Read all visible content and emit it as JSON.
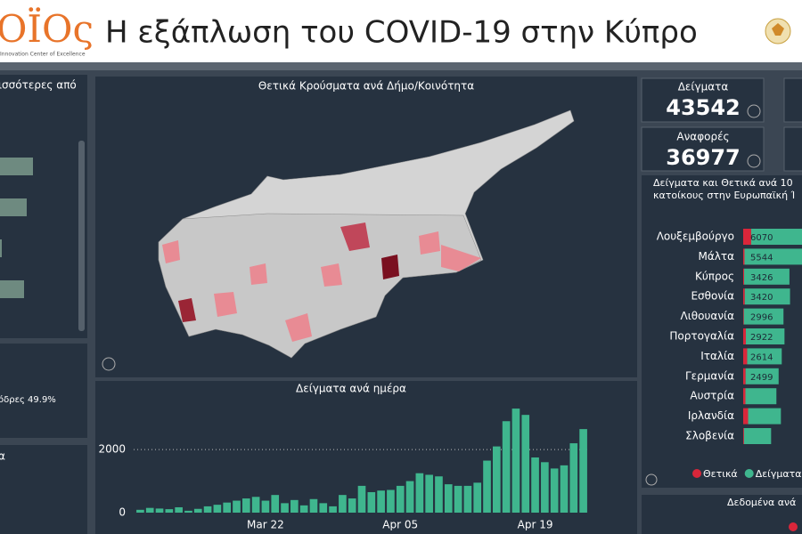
{
  "header": {
    "logo": "ΟΪΟς",
    "logo_subtitle": "Innovation Center of Excellence",
    "title": "Η εξάπλωση του COVID-19 στην Κύπρο"
  },
  "left_panel": {
    "title": "ισσότερες από",
    "bars": [
      37,
      30,
      2,
      27
    ],
    "xlim": [
      0,
      40
    ],
    "note": "όδρες 49.9%",
    "bottom_title": "α"
  },
  "map_panel": {
    "title": "Θετικά Κρούσματα ανά Δήμο/Κοινότητα"
  },
  "cards": [
    {
      "label": "Δείγματα",
      "value": "43542"
    },
    {
      "label": "Αναφορές",
      "value": "36977"
    }
  ],
  "chart_data": [
    {
      "type": "bar",
      "title": "Δείγματα ανά ημέρα",
      "color": "#3fb68e",
      "categories": [
        null,
        null,
        null,
        null,
        null,
        null,
        null,
        null,
        null,
        null,
        null,
        null,
        null,
        "Mar 22",
        null,
        null,
        null,
        null,
        null,
        null,
        null,
        null,
        null,
        null,
        null,
        null,
        null,
        "Apr 05",
        null,
        null,
        null,
        null,
        null,
        null,
        null,
        null,
        null,
        null,
        null,
        null,
        null,
        "Apr 19",
        null,
        null,
        null,
        null,
        null
      ],
      "values": [
        90,
        150,
        130,
        110,
        170,
        60,
        120,
        200,
        250,
        320,
        380,
        450,
        500,
        380,
        560,
        300,
        400,
        230,
        430,
        300,
        200,
        560,
        450,
        850,
        650,
        700,
        720,
        850,
        1000,
        1250,
        1200,
        1150,
        900,
        850,
        850,
        950,
        1650,
        2100,
        2900,
        3300,
        3100,
        1750,
        1600,
        1400,
        1500,
        2200,
        2650
      ],
      "ylim": [
        0,
        3500
      ],
      "yticks": [
        0,
        2000
      ],
      "grid": true
    },
    {
      "type": "hbar",
      "title": [
        "Δείγματα και Θετικά ανά 10",
        "κατοίκους στην Ευρωπαϊκή Ί"
      ],
      "categories": [
        "Λουξεμβούργο",
        "Μάλτα",
        "Κύπρος",
        "Εσθονία",
        "Λιθουανία",
        "Πορτογαλία",
        "Ιταλία",
        "Γερμανία",
        "Αυστρία",
        "Ιρλανδία",
        "Σλοβενία"
      ],
      "series": [
        {
          "name": "Θετικά",
          "color": "#d9263a",
          "values": [
            600,
            100,
            70,
            120,
            50,
            200,
            300,
            180,
            170,
            370,
            60
          ]
        },
        {
          "name": "Δείγματα",
          "color": "#3fb68e",
          "values": [
            6070,
            5544,
            3426,
            3420,
            2996,
            2922,
            2614,
            2499,
            2340,
            2480,
            2050
          ],
          "value_labels": [
            "6070",
            "5544",
            "3426",
            "3420",
            "2996",
            "2922",
            "2614",
            "2499",
            null,
            null,
            null
          ]
        }
      ],
      "xlim": [
        0,
        6600
      ],
      "stacked": true,
      "bottom_title": "Δεδομένα ανά"
    }
  ]
}
